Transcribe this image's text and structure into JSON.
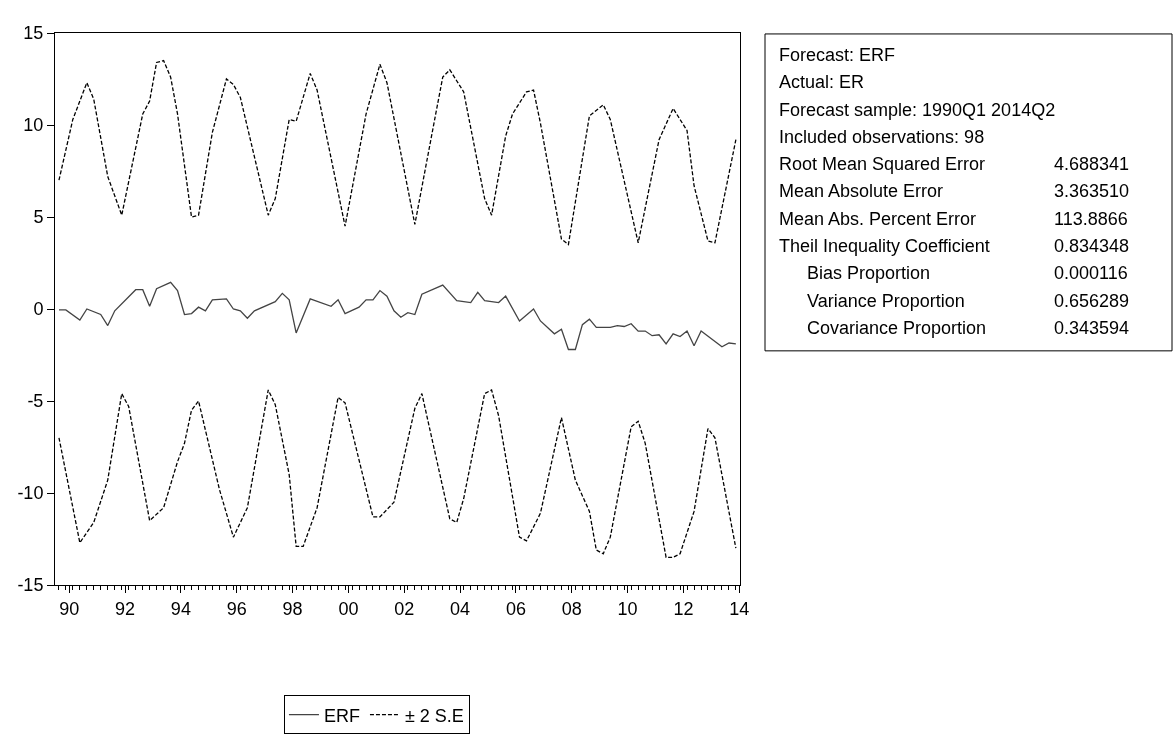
{
  "chart_data": {
    "type": "line",
    "annotations": [
      "Forecast: ERF",
      "Actual: ER",
      "Forecast sample: 1990Q1 2014Q2",
      "Included observations: 98",
      "Root Mean Squared Error",
      "4.688341",
      "Mean Absolute Error",
      "3.363510",
      "Mean Abs. Percent Error",
      "113.8866",
      "Theil Inequality Coefficient",
      "0.834348",
      "Bias Proportion",
      "0.000116",
      "Variance Proportion",
      "0.656289",
      "Covariance Proportion",
      "0.343594"
    ],
    "series": [
      {
        "name": "ERF",
        "color": "#444444",
        "line_style": "solid",
        "x": [
          "1990-01",
          "1990-04",
          "1990-10",
          "1991-01",
          "1991-07",
          "1991-10",
          "1992-01",
          "1992-10",
          "1993-01",
          "1993-04",
          "1993-07",
          "1994-01",
          "1994-04",
          "1994-07",
          "1994-10",
          "1995-01",
          "1995-04",
          "1995-07",
          "1996-01",
          "1996-04",
          "1996-07",
          "1996-10",
          "1997-01",
          "1997-10",
          "1998-01",
          "1998-04",
          "1998-07",
          "1999-01",
          "1999-10",
          "2000-01",
          "2000-04",
          "2000-10",
          "2001-01",
          "2001-04",
          "2001-07",
          "2001-10",
          "2002-01",
          "2002-04",
          "2002-07",
          "2002-10",
          "2003-01",
          "2003-10",
          "2004-04",
          "2004-10",
          "2005-01",
          "2005-04",
          "2005-10",
          "2006-01",
          "2006-07",
          "2007-01",
          "2007-04",
          "2007-10",
          "2008-01",
          "2008-04",
          "2008-07",
          "2008-10",
          "2009-01",
          "2009-04",
          "2009-10",
          "2010-01",
          "2010-04",
          "2010-07",
          "2010-10",
          "2011-01",
          "2011-04",
          "2011-07",
          "2011-10",
          "2012-01",
          "2012-04",
          "2012-07",
          "2012-10",
          "2013-01",
          "2013-10",
          "2014-01",
          "2014-04"
        ],
        "values": [
          -0.05,
          -0.05,
          -0.6,
          0.0,
          -0.3,
          -0.9,
          -0.1,
          1.05,
          1.05,
          0.15,
          1.1,
          1.45,
          1.0,
          -0.3,
          -0.25,
          0.1,
          -0.1,
          0.5,
          0.55,
          0.0,
          -0.1,
          -0.5,
          -0.1,
          0.4,
          0.85,
          0.5,
          -1.3,
          0.55,
          0.15,
          0.5,
          -0.25,
          0.1,
          0.5,
          0.5,
          1.0,
          0.7,
          -0.1,
          -0.45,
          -0.2,
          -0.3,
          0.8,
          1.3,
          0.45,
          0.35,
          0.9,
          0.45,
          0.35,
          0.7,
          -0.65,
          0.0,
          -0.65,
          -1.35,
          -1.1,
          -2.2,
          -2.2,
          -0.85,
          -0.55,
          -1.0,
          -1.0,
          -0.9,
          -0.95,
          -0.8,
          -1.2,
          -1.2,
          -1.45,
          -1.4,
          -1.9,
          -1.35,
          -1.5,
          -1.2,
          -2.0,
          -1.2,
          -2.05,
          -1.85,
          -1.9
        ]
      },
      {
        "name": "± 2 S.E",
        "color": "#000000",
        "line_style": "dashed",
        "x": [
          "1990-01",
          "1990-07",
          "1991-01",
          "1991-04",
          "1991-10",
          "1992-04",
          "1993-01",
          "1993-04",
          "1993-07",
          "1993-10",
          "1994-01",
          "1994-04",
          "1994-10",
          "1995-01",
          "1995-07",
          "1996-01",
          "1996-04",
          "1996-07",
          "1997-07",
          "1997-10",
          "1998-04",
          "1998-07",
          "1999-01",
          "1999-04",
          "2000-04",
          "2001-01",
          "2001-07",
          "2001-10",
          "2002-10",
          "2003-07",
          "2003-10",
          "2004-01",
          "2004-07",
          "2005-04",
          "2005-07",
          "2006-01",
          "2006-04",
          "2006-10",
          "2007-01",
          "2007-04",
          "2008-01",
          "2008-04",
          "2009-01",
          "2009-07",
          "2009-10",
          "2010-10",
          "2011-07",
          "2012-01",
          "2012-07",
          "2012-10",
          "2013-04",
          "2013-07",
          "2014-04"
        ],
        "values": [
          7.0,
          10.3,
          12.3,
          11.4,
          7.2,
          5.1,
          10.6,
          11.3,
          13.4,
          13.5,
          12.6,
          10.6,
          5.0,
          5.1,
          9.6,
          12.5,
          12.2,
          11.5,
          5.1,
          6.0,
          10.3,
          10.2,
          12.8,
          11.9,
          4.5,
          10.6,
          13.3,
          12.3,
          4.6,
          10.6,
          12.6,
          13.0,
          11.8,
          6.0,
          5.1,
          9.4,
          10.6,
          11.8,
          11.9,
          10.1,
          3.8,
          3.5,
          10.5,
          11.1,
          10.3,
          3.6,
          9.2,
          10.9,
          9.7,
          6.7,
          3.7,
          3.6,
          9.2
        ]
      },
      {
        "color": "#000000",
        "line_style": "dashed",
        "x": [
          "1990-01",
          "1990-10",
          "1991-04",
          "1991-10",
          "1992-04",
          "1992-07",
          "1993-04",
          "1993-10",
          "1994-04",
          "1994-07",
          "1994-10",
          "1995-01",
          "1995-10",
          "1996-04",
          "1996-10",
          "1997-07",
          "1997-10",
          "1998-04",
          "1998-07",
          "1998-10",
          "1999-04",
          "2000-01",
          "2000-04",
          "2001-04",
          "2001-07",
          "2002-01",
          "2002-10",
          "2003-01",
          "2004-01",
          "2004-04",
          "2004-07",
          "2005-04",
          "2005-07",
          "2005-10",
          "2006-07",
          "2006-10",
          "2007-04",
          "2008-01",
          "2008-07",
          "2009-01",
          "2009-04",
          "2009-07",
          "2009-10",
          "2010-07",
          "2010-10",
          "2011-01",
          "2011-10",
          "2012-01",
          "2012-04",
          "2012-10",
          "2013-04",
          "2013-07",
          "2014-04"
        ],
        "values": [
          -7.0,
          -12.7,
          -11.6,
          -9.3,
          -4.6,
          -5.3,
          -11.5,
          -10.8,
          -8.3,
          -7.3,
          -5.5,
          -5.0,
          -9.8,
          -12.4,
          -10.8,
          -4.4,
          -5.2,
          -9.0,
          -12.9,
          -12.9,
          -10.8,
          -4.8,
          -5.1,
          -11.3,
          -11.3,
          -10.5,
          -5.4,
          -4.6,
          -11.4,
          -11.6,
          -10.3,
          -4.6,
          -4.4,
          -5.8,
          -12.4,
          -12.6,
          -11.1,
          -5.9,
          -9.3,
          -11.0,
          -13.1,
          -13.3,
          -12.4,
          -6.4,
          -6.1,
          -7.3,
          -13.5,
          -13.5,
          -13.3,
          -11.0,
          -6.5,
          -7.0,
          -13.0
        ]
      }
    ],
    "xlim": [
      "1989-11-10",
      "2014-05-25"
    ],
    "xticks": [
      {
        "value": "1990-05-15",
        "label": "90"
      },
      {
        "value": "1992-05-15",
        "label": "92"
      },
      {
        "value": "1994-05-15",
        "label": "94"
      },
      {
        "value": "1996-05-15",
        "label": "96"
      },
      {
        "value": "1998-05-15",
        "label": "98"
      },
      {
        "value": "2000-05-15",
        "label": "00"
      },
      {
        "value": "2002-05-15",
        "label": "02"
      },
      {
        "value": "2004-05-15",
        "label": "04"
      },
      {
        "value": "2006-05-15",
        "label": "06"
      },
      {
        "value": "2008-05-15",
        "label": "08"
      },
      {
        "value": "2010-05-15",
        "label": "10"
      },
      {
        "value": "2012-05-15",
        "label": "12"
      },
      {
        "value": "2014-05-15",
        "label": "14"
      }
    ],
    "ylim": [
      -15,
      15
    ],
    "yticks": [
      -15,
      -10,
      -5,
      0,
      5,
      10,
      15
    ],
    "legend": "bottom"
  }
}
